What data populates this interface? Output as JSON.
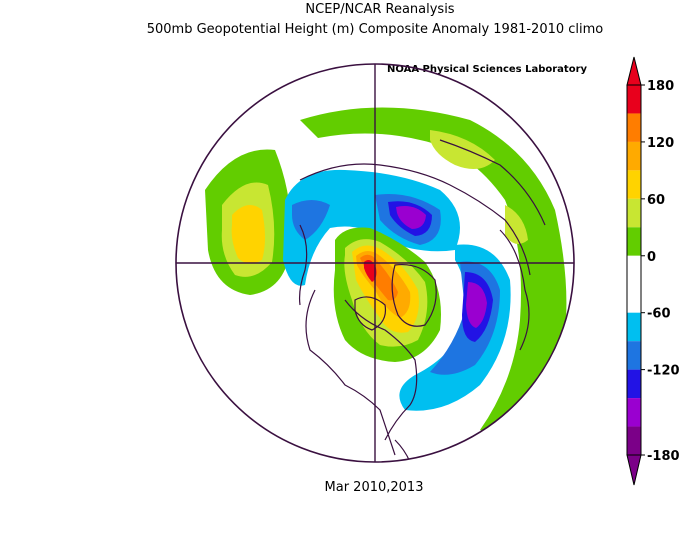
{
  "header": {
    "line1": "NCEP/NCAR Reanalysis",
    "line2": "500mb Geopotential Height (m) Composite Anomaly 1981-2010 climo",
    "credit": "NOAA Physical Sciences Laboratory"
  },
  "footer": {
    "period": "Mar 2010,2013"
  },
  "colorbar": {
    "ticks": [
      "180",
      "120",
      "60",
      "0",
      "-60",
      "-120",
      "-180"
    ],
    "colors_top_to_bottom": [
      "#e8001c",
      "#ff7d00",
      "#ffaa00",
      "#ffd300",
      "#c8e632",
      "#62cd00",
      "#ffffff",
      "#ffffff",
      "#00bff0",
      "#1e75e1",
      "#2213e5",
      "#9a00d0",
      "#7b0088"
    ]
  },
  "map": {
    "projection": "North polar stereographic",
    "anomaly_centers": [
      {
        "region": "Greenland / Baffin Bay",
        "sign": "positive",
        "peak_level": "150+"
      },
      {
        "region": "North Pacific",
        "sign": "positive",
        "peak_level": "90-120"
      },
      {
        "region": "Eastern Siberia",
        "sign": "negative",
        "peak_level": "-150"
      },
      {
        "region": "North Atlantic",
        "sign": "negative",
        "peak_level": "-150"
      },
      {
        "region": "Europe / Mediterranean",
        "sign": "positive",
        "peak_level": "30-60"
      }
    ]
  }
}
